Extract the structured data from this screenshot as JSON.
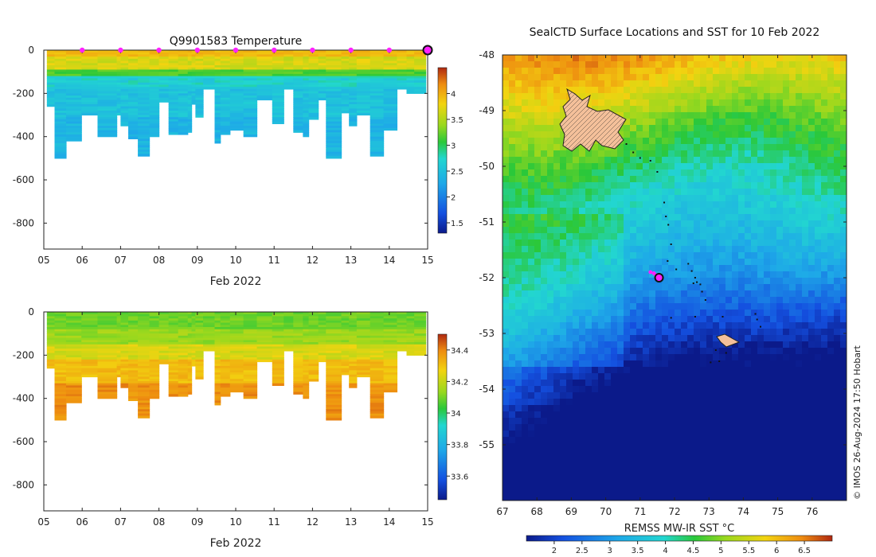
{
  "chart_data": [
    {
      "id": "temperature",
      "type": "heatmap",
      "title": "Q9901583  Temperature",
      "xlabel": "Feb 2022",
      "x_tick_labels": [
        "05",
        "06",
        "07",
        "08",
        "09",
        "10",
        "11",
        "12",
        "13",
        "14",
        "15"
      ],
      "xlim": [
        5,
        15
      ],
      "ylim": [
        -920,
        0
      ],
      "y_ticks": [
        0,
        -200,
        -400,
        -600,
        -800
      ],
      "colorbar": {
        "min": 1.3,
        "max": 4.5,
        "ticks": [
          1.5,
          2,
          2.5,
          3,
          3.5,
          4
        ]
      },
      "surface_markers": [
        6,
        7,
        8,
        9,
        10,
        11,
        12,
        13,
        14
      ],
      "current_marker": 15,
      "profile_starts": [
        5.08,
        5.28,
        5.58,
        5.98,
        6.4,
        6.9,
        7.0,
        7.2,
        7.45,
        7.75,
        8.0,
        8.25,
        8.5,
        8.75,
        8.85,
        8.95,
        9.15,
        9.45,
        9.6,
        9.85,
        10.2,
        10.55,
        10.95,
        11.25,
        11.5,
        11.75,
        11.9,
        12.15,
        12.35,
        12.75,
        12.95,
        13.15,
        13.5,
        13.85,
        14.2,
        14.45,
        14.65
      ],
      "profile_max_depths": [
        260,
        500,
        415,
        300,
        400,
        300,
        345,
        410,
        490,
        400,
        240,
        385,
        390,
        380,
        250,
        310,
        180,
        430,
        385,
        370,
        400,
        230,
        335,
        180,
        375,
        400,
        320,
        230,
        500,
        290,
        345,
        300,
        490,
        370,
        180,
        200,
        195
      ]
    },
    {
      "id": "salinity",
      "type": "heatmap",
      "title": "",
      "xlabel": "Feb 2022",
      "x_tick_labels": [
        "05",
        "06",
        "07",
        "08",
        "09",
        "10",
        "11",
        "12",
        "13",
        "14",
        "15"
      ],
      "xlim": [
        5,
        15
      ],
      "ylim": [
        -920,
        0
      ],
      "y_ticks": [
        0,
        -200,
        -400,
        -600,
        -800
      ],
      "colorbar": {
        "min": 33.45,
        "max": 34.5,
        "ticks": [
          33.6,
          33.8,
          34,
          34.2,
          34.4
        ]
      }
    },
    {
      "id": "sst-map",
      "type": "heatmap",
      "title": "SealCTD Surface Locations and SST for 10 Feb 2022",
      "colorbar_label": "REMSS MW-IR SST °C",
      "xlim": [
        67,
        77
      ],
      "ylim": [
        -56,
        -48
      ],
      "x_ticks": [
        67,
        68,
        69,
        70,
        71,
        72,
        73,
        74,
        75,
        76
      ],
      "y_ticks": [
        -48,
        -49,
        -50,
        -51,
        -52,
        -53,
        -54,
        -55
      ],
      "colorbar": {
        "min": 1.5,
        "max": 7.0,
        "ticks": [
          2,
          2.5,
          3,
          3.5,
          4,
          4.5,
          5,
          5.5,
          6,
          6.5
        ]
      },
      "track_positions": [
        [
          70.6,
          -49.6
        ],
        [
          70.8,
          -49.75
        ],
        [
          71.0,
          -49.85
        ],
        [
          71.3,
          -49.9
        ],
        [
          71.5,
          -50.1
        ],
        [
          71.7,
          -50.65
        ],
        [
          71.75,
          -50.9
        ],
        [
          71.82,
          -51.05
        ],
        [
          71.9,
          -51.4
        ],
        [
          71.8,
          -51.7
        ],
        [
          72.05,
          -51.85
        ],
        [
          72.4,
          -51.75
        ],
        [
          72.5,
          -51.88
        ],
        [
          72.6,
          -52.0
        ],
        [
          72.55,
          -52.1
        ],
        [
          72.65,
          -52.08
        ],
        [
          72.75,
          -52.12
        ],
        [
          72.8,
          -52.25
        ],
        [
          72.9,
          -52.4
        ],
        [
          72.6,
          -52.7
        ],
        [
          73.4,
          -52.7
        ],
        [
          74.35,
          -52.65
        ],
        [
          74.4,
          -52.75
        ],
        [
          74.5,
          -52.88
        ],
        [
          73.2,
          -53.3
        ],
        [
          73.5,
          -53.35
        ],
        [
          73.3,
          -53.5
        ],
        [
          73.05,
          -53.52
        ],
        [
          71.9,
          -52.72
        ]
      ],
      "recent_positions": [
        [
          71.3,
          -51.9
        ],
        [
          71.4,
          -51.92
        ],
        [
          71.45,
          -51.95
        ]
      ],
      "current_position": [
        71.55,
        -52.0
      ],
      "islands": [
        "Kerguelen",
        "Heard Island"
      ]
    }
  ],
  "credit": "© IMOS 26-Aug-2024 17:50 Hobart"
}
